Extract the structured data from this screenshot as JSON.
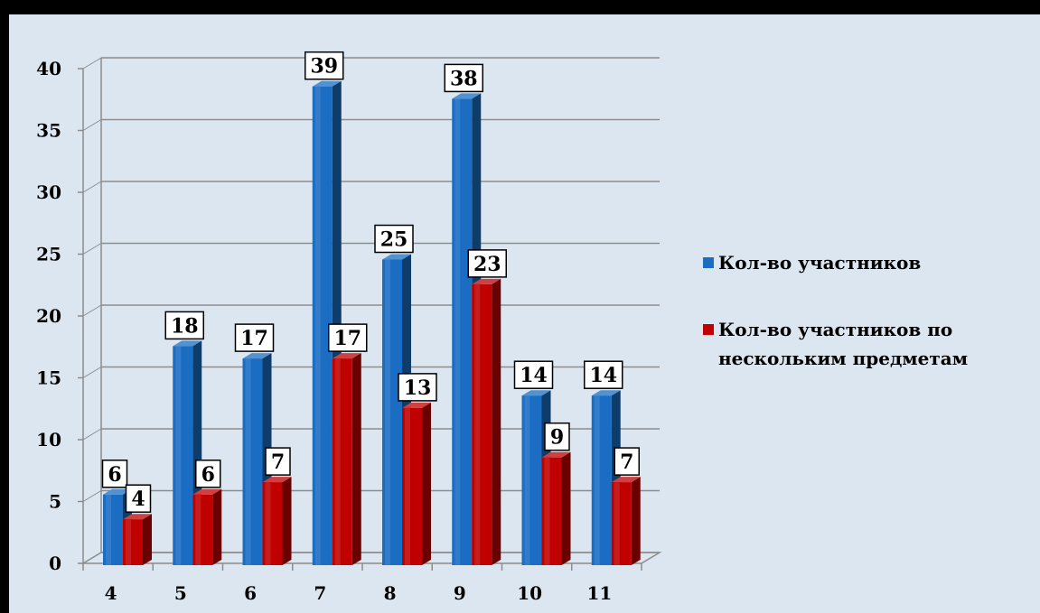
{
  "chart_data": {
    "type": "bar",
    "categories": [
      "4",
      "5",
      "6",
      "7",
      "8",
      "9",
      "10",
      "11"
    ],
    "series": [
      {
        "name": "Кол-во участников",
        "color": "#1a6dc2",
        "values": [
          6,
          18,
          17,
          39,
          25,
          38,
          14,
          14
        ]
      },
      {
        "name": "Кол-во участников по нескольким предметам",
        "color": "#c00000",
        "values": [
          4,
          6,
          7,
          17,
          13,
          23,
          9,
          7
        ]
      }
    ],
    "yticks": [
      "0",
      "5",
      "10",
      "15",
      "20",
      "25",
      "30",
      "35",
      "40"
    ],
    "ylim": [
      0,
      40
    ],
    "grid": true,
    "legend": {
      "position": "right",
      "entries": [
        {
          "lines": [
            "Кол-во участников"
          ]
        },
        {
          "lines": [
            "Кол-во участников по",
            "нескольким предметам"
          ]
        }
      ]
    }
  }
}
